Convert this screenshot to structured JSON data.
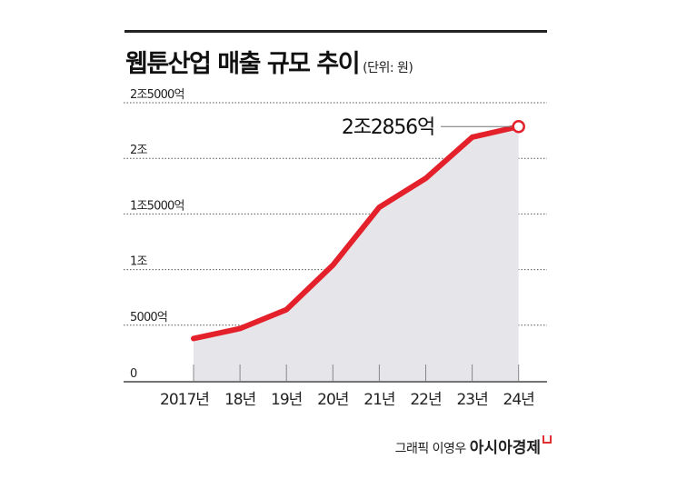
{
  "header": {
    "title": "웹툰산업 매출 규모 추이",
    "unit": "(단위: 원)"
  },
  "credit": {
    "author": "그래픽 이영우",
    "brand": "아시아경제"
  },
  "colors": {
    "line": "#e4202a",
    "area": "#e6e6ea",
    "grid": "#555555",
    "text": "#1a1a1a"
  },
  "chart_data": {
    "type": "area",
    "title": "웹툰산업 매출 규모 추이",
    "subtitle": "(단위: 원)",
    "xlabel": "",
    "ylabel": "",
    "categories": [
      "2017년",
      "18년",
      "19년",
      "20년",
      "21년",
      "22년",
      "23년",
      "24년"
    ],
    "series": [
      {
        "name": "웹툰산업 매출",
        "unit": "억원",
        "values": [
          3800,
          4700,
          6400,
          10400,
          15600,
          18200,
          21900,
          22856
        ]
      }
    ],
    "y_ticks": [
      {
        "value": 0,
        "label": "0"
      },
      {
        "value": 5000,
        "label": "5000억"
      },
      {
        "value": 10000,
        "label": "1조"
      },
      {
        "value": 15000,
        "label": "1조5000억"
      },
      {
        "value": 20000,
        "label": "2조"
      },
      {
        "value": 25000,
        "label": "2조5000억"
      }
    ],
    "ylim": [
      0,
      25000
    ],
    "grid": "horizontal dotted",
    "legend": "none",
    "annotations": [
      {
        "category": "24년",
        "text": "2조2856억"
      }
    ]
  }
}
